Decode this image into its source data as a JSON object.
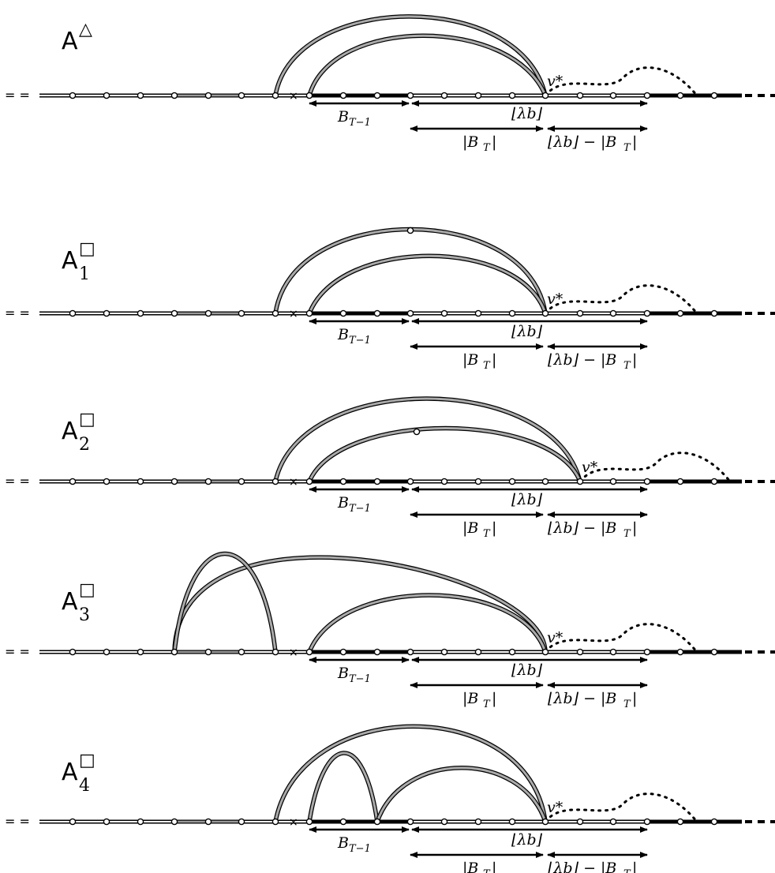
{
  "diagram": {
    "line_prefix": "= =",
    "cross_mark": "×",
    "vstar_label": "v*",
    "labels": {
      "b_t_minus_1": "B",
      "b_t_minus_1_sub": "T−1",
      "floor_lambda_b": "⌊λb⌋",
      "abs_b_t": "|B",
      "abs_b_t_sub": "T",
      "abs_b_t_close": "|",
      "diff": "⌊λb⌋ − |B",
      "diff_sub": "T",
      "diff_close": "|"
    },
    "panels": [
      {
        "id": "triangle",
        "title": "A",
        "sup": "△",
        "sub": ""
      },
      {
        "id": "square1",
        "title": "A",
        "sup": "□",
        "sub": "1"
      },
      {
        "id": "square2",
        "title": "A",
        "sup": "□",
        "sub": "2"
      },
      {
        "id": "square3",
        "title": "A",
        "sup": "□",
        "sub": "3"
      },
      {
        "id": "square4",
        "title": "A",
        "sup": "□",
        "sub": "4"
      }
    ]
  }
}
